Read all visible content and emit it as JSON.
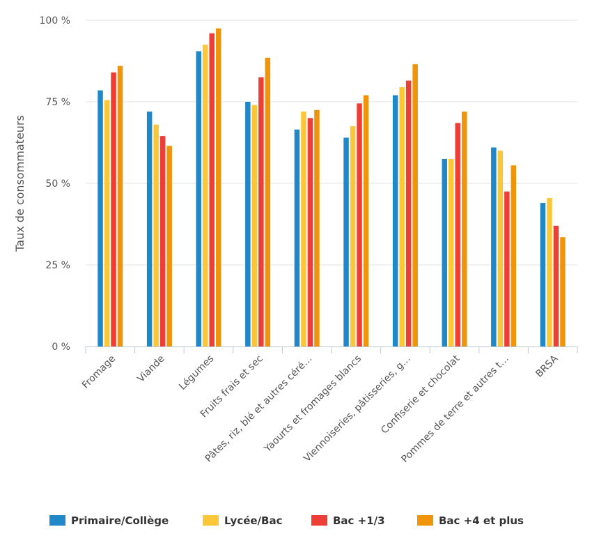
{
  "chart_data": {
    "type": "bar",
    "title": "",
    "xlabel": "",
    "ylabel": "Taux de consommateurs",
    "ylim": [
      0,
      100
    ],
    "yticks": [
      {
        "value": 0,
        "label": "0 %"
      },
      {
        "value": 25,
        "label": "25 %"
      },
      {
        "value": 50,
        "label": "50 %"
      },
      {
        "value": 75,
        "label": "75 %"
      },
      {
        "value": 100,
        "label": "100 %"
      }
    ],
    "grid": true,
    "legend_position": "bottom",
    "categories": [
      "Fromage",
      "Viande",
      "Légumes",
      "Fruits frais et sec",
      "Pâtes, riz, blé et autres céré…",
      "Yaourts et fromages blancs",
      "Viennoiseries, pâtisseries, g…",
      "Confiserie et chocolat",
      "Pommes de terre et autres t…",
      "BRSA"
    ],
    "series": [
      {
        "name": "Primaire/Collège",
        "color": "#1f88c8",
        "values": [
          78.5,
          72,
          90.5,
          75,
          66.5,
          64,
          77,
          57.5,
          61,
          44
        ]
      },
      {
        "name": "Lycée/Bac",
        "color": "#fcc737",
        "values": [
          75.5,
          68,
          92.5,
          74,
          72,
          67.5,
          79.5,
          57.5,
          60,
          45.5
        ]
      },
      {
        "name": "Bac +1/3",
        "color": "#ef3e36",
        "values": [
          84,
          64.5,
          96,
          82.5,
          70,
          74.5,
          81.5,
          68.5,
          47.5,
          37
        ]
      },
      {
        "name": "Bac +4 et plus",
        "color": "#f0940a",
        "values": [
          86,
          61.5,
          97.5,
          88.5,
          72.5,
          77,
          86.5,
          72,
          55.5,
          33.5
        ]
      }
    ]
  }
}
